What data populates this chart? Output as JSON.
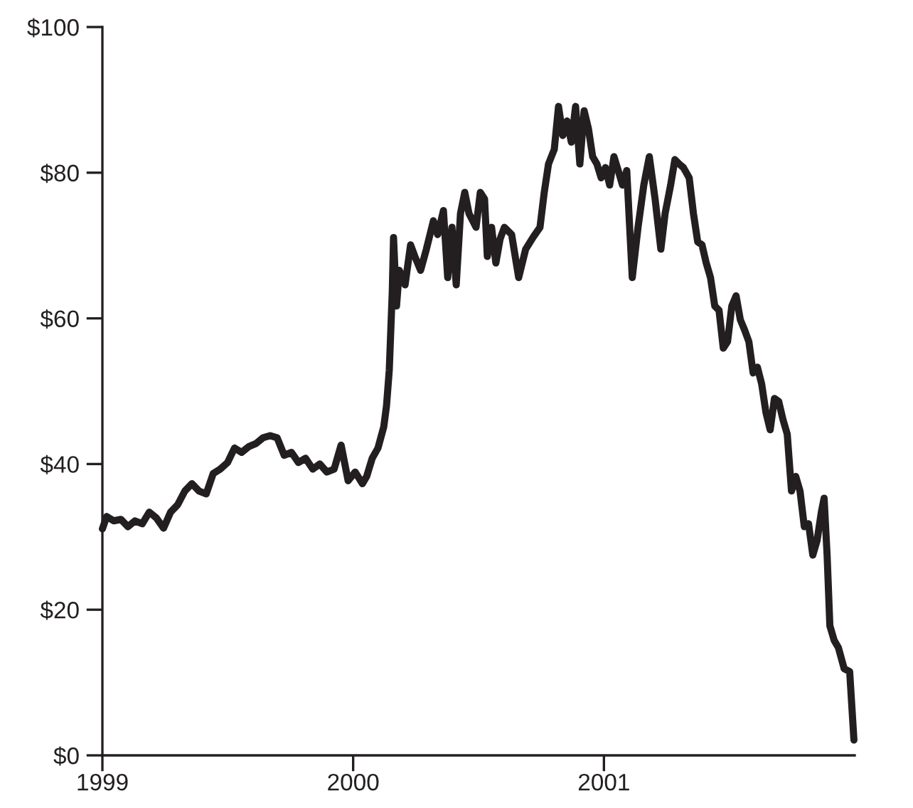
{
  "chart_data": {
    "type": "line",
    "xlim": [
      1999,
      2002
    ],
    "xticks": [
      1999,
      2000,
      2001
    ],
    "ylim": [
      0,
      100
    ],
    "yticks": [
      {
        "value": 0,
        "label": "$0"
      },
      {
        "value": 20,
        "label": "$20"
      },
      {
        "value": 40,
        "label": "$40"
      },
      {
        "value": 60,
        "label": "$60"
      },
      {
        "value": 80,
        "label": "$80"
      },
      {
        "value": 100,
        "label": "$100"
      }
    ],
    "grid": false,
    "marker": "none",
    "line_style": "solid",
    "series": [
      {
        "color": "#231f20",
        "x": [
          1999.0,
          1999.017,
          1999.045,
          1999.074,
          1999.102,
          1999.13,
          1999.159,
          1999.187,
          1999.215,
          1999.244,
          1999.272,
          1999.3,
          1999.329,
          1999.357,
          1999.385,
          1999.414,
          1999.442,
          1999.47,
          1999.499,
          1999.527,
          1999.555,
          1999.584,
          1999.612,
          1999.64,
          1999.669,
          1999.697,
          1999.725,
          1999.754,
          1999.782,
          1999.81,
          1999.839,
          1999.867,
          1999.895,
          1999.924,
          1999.952,
          1999.98,
          2000.008,
          2000.037,
          2000.054,
          2000.076,
          2000.099,
          2000.122,
          2000.133,
          2000.144,
          2000.156,
          2000.161,
          2000.173,
          2000.184,
          2000.207,
          2000.229,
          2000.246,
          2000.269,
          2000.292,
          2000.32,
          2000.337,
          2000.36,
          2000.377,
          2000.394,
          2000.411,
          2000.428,
          2000.445,
          2000.462,
          2000.49,
          2000.507,
          2000.524,
          2000.535,
          2000.552,
          2000.569,
          2000.586,
          2000.603,
          2000.632,
          2000.66,
          2000.688,
          2000.717,
          2000.745,
          2000.762,
          2000.779,
          2000.802,
          2000.819,
          2000.836,
          2000.853,
          2000.87,
          2000.887,
          2000.904,
          2000.921,
          2000.938,
          2000.955,
          2000.972,
          2000.989,
          2001.006,
          2001.023,
          2001.04,
          2001.057,
          2001.074,
          2001.091,
          2001.113,
          2001.136,
          2001.159,
          2001.181,
          2001.204,
          2001.227,
          2001.244,
          2001.266,
          2001.283,
          2001.3,
          2001.317,
          2001.34,
          2001.357,
          2001.374,
          2001.391,
          2001.408,
          2001.425,
          2001.442,
          2001.459,
          2001.476,
          2001.493,
          2001.51,
          2001.527,
          2001.544,
          2001.561,
          2001.578,
          2001.595,
          2001.612,
          2001.629,
          2001.646,
          2001.663,
          2001.68,
          2001.697,
          2001.714,
          2001.731,
          2001.748,
          2001.765,
          2001.782,
          2001.799,
          2001.816,
          2001.833,
          2001.85,
          2001.867,
          2001.878,
          2001.89,
          2001.901,
          2001.918,
          2001.935,
          2001.958,
          2001.98,
          2001.997
        ],
        "values": [
          31.1,
          32.8,
          32.2,
          32.4,
          31.4,
          32.2,
          31.8,
          33.4,
          32.6,
          31.2,
          33.4,
          34.4,
          36.3,
          37.3,
          36.3,
          35.9,
          38.7,
          39.3,
          40.2,
          42.2,
          41.6,
          42.4,
          42.8,
          43.6,
          43.9,
          43.6,
          41.2,
          41.6,
          40.2,
          40.8,
          39.3,
          40.0,
          38.9,
          39.3,
          42.6,
          37.7,
          38.9,
          37.3,
          38.3,
          40.8,
          42.2,
          45.1,
          48.0,
          52.9,
          63.7,
          71.1,
          61.7,
          66.6,
          64.6,
          70.1,
          68.5,
          66.6,
          69.5,
          73.4,
          71.5,
          74.8,
          65.6,
          72.5,
          64.6,
          74.4,
          77.3,
          74.4,
          72.5,
          77.3,
          76.4,
          68.5,
          72.5,
          67.6,
          70.9,
          72.5,
          71.5,
          65.6,
          69.5,
          71.1,
          72.5,
          77.3,
          81.2,
          83.2,
          89.1,
          85.1,
          87.1,
          84.2,
          89.1,
          81.2,
          88.5,
          86.1,
          82.2,
          81.2,
          79.3,
          80.7,
          78.3,
          82.2,
          80.3,
          78.3,
          80.3,
          65.6,
          72.5,
          78.3,
          82.2,
          76.4,
          69.5,
          74.4,
          78.3,
          81.8,
          81.2,
          80.7,
          79.3,
          74.4,
          70.5,
          70.1,
          67.6,
          65.6,
          61.7,
          61.1,
          55.9,
          56.8,
          61.7,
          63.1,
          59.8,
          58.4,
          56.8,
          52.5,
          53.3,
          51.0,
          47.1,
          44.7,
          49.0,
          48.6,
          46.1,
          44.1,
          36.3,
          38.3,
          36.3,
          31.4,
          31.8,
          27.5,
          29.5,
          33.4,
          35.3,
          27.5,
          17.8,
          15.8,
          14.8,
          11.9,
          11.5,
          2.1
        ]
      }
    ]
  }
}
